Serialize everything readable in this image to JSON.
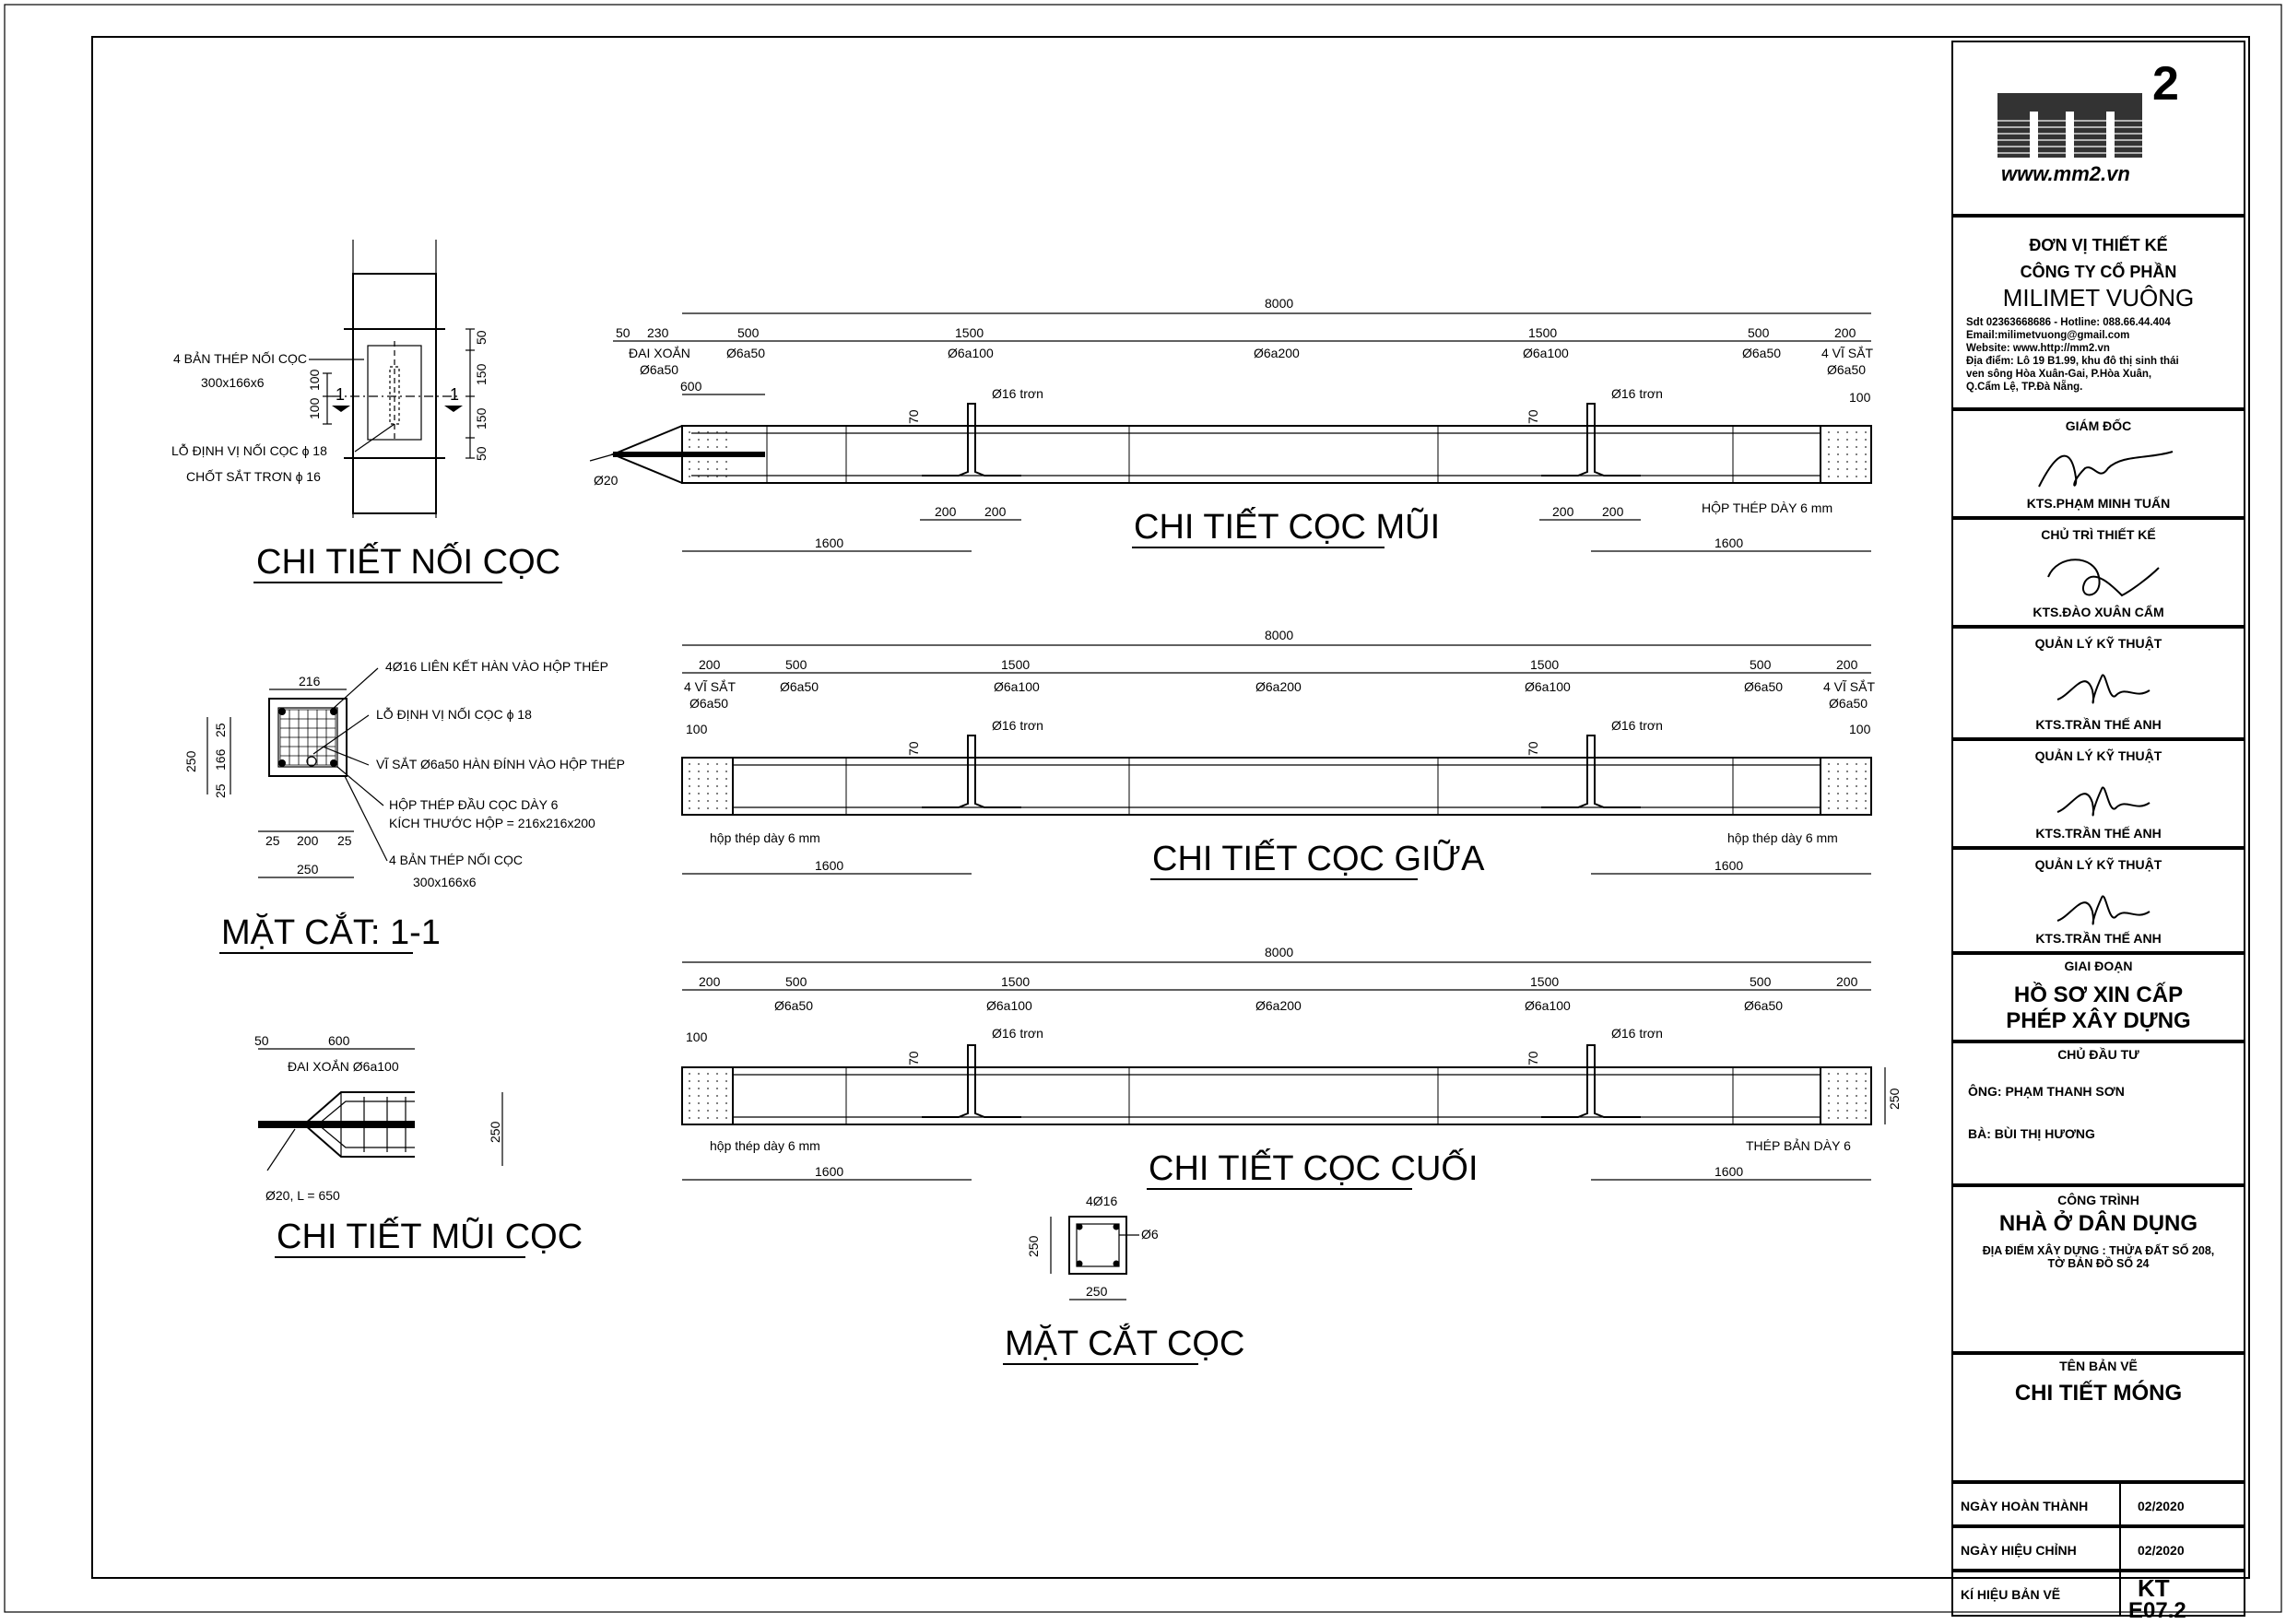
{
  "splice": {
    "title": "CHI TIẾT NỐI CỌC",
    "lbl_plates": "4 BẢN THÉP NỐI CỌC",
    "lbl_plates_size": "300x166x6",
    "lbl_hole": "LỖ ĐỊNH VỊ NỐI CỌC ϕ 18",
    "lbl_pin": "CHỐT SẮT TRƠN ϕ 16",
    "dim_50a": "50",
    "dim_150a": "150",
    "dim_150b": "150",
    "dim_50b": "50",
    "dim_100a": "100",
    "dim_100b": "100",
    "sec_mark": "1"
  },
  "section11": {
    "title": "MẶT CẮT: 1-1",
    "dim_216": "216",
    "dim_250v": "250",
    "dim_25a": "25",
    "dim_166": "166",
    "dim_25b": "25",
    "dim_25c": "25",
    "dim_200": "200",
    "dim_25d": "25",
    "dim_250h": "250",
    "lbl_bars": "4Ø16 LIÊN KẾT HÀN VÀO HỘP THÉP",
    "lbl_hole": "LỖ ĐỊNH VỊ NỐI CỌC ϕ 18",
    "lbl_mesh": "VĨ SẮT Ø6a50 HÀN ĐÍNH VÀO HỘP THÉP",
    "lbl_box": "HỘP THÉP ĐẦU CỌC DÀY 6",
    "lbl_box_size": "KÍCH THƯỚC HỘP = 216x216x200",
    "lbl_plates": "4 BẢN THÉP NỐI CỌC",
    "lbl_plates_size": "300x166x6"
  },
  "tip": {
    "title": "CHI TIẾT MŨI CỌC",
    "dim_50": "50",
    "dim_600": "600",
    "lbl_stirrup": "ĐAI XOẮN Ø6a100",
    "dim_250": "250",
    "lbl_rod": "Ø20, L = 650"
  },
  "pile_tip": {
    "title": "CHI TIẾT CỌC MŨI",
    "total": "8000",
    "segs": [
      "50",
      "230",
      "500",
      "1500",
      "1500",
      "500",
      "200"
    ],
    "spacing": [
      "ĐAI XOẮN",
      "Ø6a50",
      "Ø6a50",
      "Ø6a100",
      "Ø6a200",
      "Ø6a100",
      "Ø6a50",
      "4 VĨ SẮT",
      "Ø6a50"
    ],
    "dim_600": "600",
    "rod_l": "Ø16 trơn",
    "rod_r": "Ø16 trơn",
    "dim_70a": "70",
    "dim_70b": "70",
    "dim_100": "100",
    "tip_d": "Ø20",
    "d200a": "200",
    "d200b": "200",
    "d200c": "200",
    "d200d": "200",
    "box_lbl": "HỘP THÉP DÀY 6 mm",
    "d1600a": "1600",
    "d1600b": "1600"
  },
  "pile_mid": {
    "title": "CHI TIẾT CỌC GIỮA",
    "total": "8000",
    "segs": [
      "200",
      "500",
      "1500",
      "1500",
      "500",
      "200"
    ],
    "spacing": [
      "4 VĨ SẮT",
      "Ø6a50",
      "Ø6a50",
      "Ø6a100",
      "Ø6a200",
      "Ø6a100",
      "Ø6a50",
      "4 VĨ SẮT",
      "Ø6a50"
    ],
    "rod_l": "Ø16 trơn",
    "rod_r": "Ø16 trơn",
    "dim_70a": "70",
    "dim_70b": "70",
    "dim_100a": "100",
    "dim_100b": "100",
    "box_l": "hộp thép dày 6 mm",
    "box_r": "hộp thép dày 6 mm",
    "d1600a": "1600",
    "d1600b": "1600"
  },
  "pile_end": {
    "title": "CHI TIẾT CỌC CUỐI",
    "total": "8000",
    "segs": [
      "200",
      "500",
      "1500",
      "1500",
      "500",
      "200"
    ],
    "spacing": [
      "Ø6a50",
      "Ø6a100",
      "Ø6a200",
      "Ø6a100",
      "Ø6a50"
    ],
    "rod_l": "Ø16 trơn",
    "rod_r": "Ø16 trơn",
    "dim_70a": "70",
    "dim_70b": "70",
    "dim_100": "100",
    "dim_250": "250",
    "box_l": "hộp thép dày 6 mm",
    "plate_r": "THÉP BẢN DÀY 6",
    "d1600a": "1600",
    "d1600b": "1600"
  },
  "pile_section": {
    "title": "MẶT CẮT CỌC",
    "bars": "4Ø16",
    "stirrup": "Ø6",
    "dim_250v": "250",
    "dim_250h": "250"
  },
  "titleblock": {
    "logo_text": "www.mm2.vn",
    "logo_letters": "mm",
    "logo_sup": "2",
    "design_unit_lbl": "ĐƠN VỊ THIẾT KẾ",
    "company_lbl": "CÔNG TY CỔ PHẦN",
    "company_name": "MILIMET VUÔNG",
    "contact": [
      "Sdt 02363668686 - Hotline: 088.66.44.404",
      "Email:milimetvuong@gmail.com",
      "Website: www.http://mm2.vn",
      "Địa điểm: Lô 19 B1.99, khu đô thị sinh thái",
      "ven sông Hòa Xuân-Gai, P.Hòa Xuân,",
      "Q.Cẩm Lệ, TP.Đà Nẵng."
    ],
    "roles": [
      {
        "role": "GIÁM ĐỐC",
        "name": "KTS.PHẠM MINH TUẤN"
      },
      {
        "role": "CHỦ TRÌ THIẾT KẾ",
        "name": "KTS.ĐÀO XUÂN CẨM"
      },
      {
        "role": "QUẢN LÝ KỸ THUẬT",
        "name": "KTS.TRẦN THẾ ANH"
      },
      {
        "role": "QUẢN LÝ KỸ THUẬT",
        "name": "KTS.TRẦN THẾ ANH"
      },
      {
        "role": "QUẢN LÝ KỸ THUẬT",
        "name": "KTS.TRẦN THẾ ANH"
      }
    ],
    "stage_lbl": "GIAI ĐOẠN",
    "stage_1": "HỒ SƠ XIN CẤP",
    "stage_2": "PHÉP XÂY DỰNG",
    "owner_lbl": "CHỦ ĐẦU TƯ",
    "owner_1": "ÔNG: PHẠM THANH SƠN",
    "owner_2": "BÀ: BÙI THỊ HƯƠNG",
    "project_lbl": "CÔNG TRÌNH",
    "project_name": "NHÀ Ở DÂN DỤNG",
    "project_loc_1": "ĐỊA ĐIỂM XÂY DỰNG : THỬA ĐẤT SỐ 208,",
    "project_loc_2": "TỜ BẢN ĐỒ SỐ 24",
    "drawing_lbl": "TÊN BẢN VẼ",
    "drawing_name": "CHI TIẾT MÓNG",
    "done_lbl": "NGÀY HOÀN THÀNH",
    "done_val": "02/2020",
    "rev_lbl": "NGÀY HIỆU CHỈNH",
    "rev_val": "02/2020",
    "code_lbl": "KÍ HIỆU BẢN VẼ",
    "code_1": "KT",
    "code_2": "E07.2"
  }
}
